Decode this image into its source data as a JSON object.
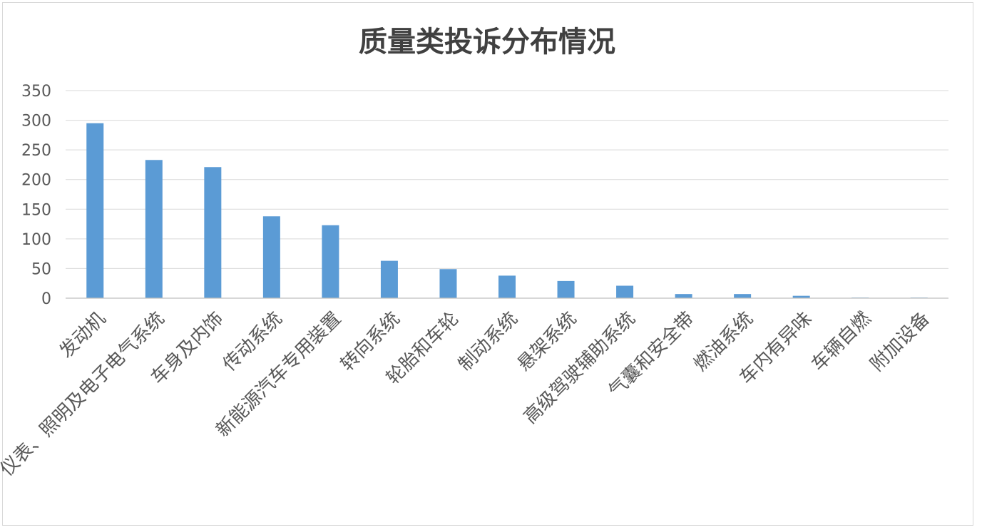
{
  "chart_data": {
    "type": "bar",
    "title": "质量类投诉分布情况",
    "xlabel": "",
    "ylabel": "",
    "ylim": [
      0,
      350
    ],
    "yticks": [
      0,
      50,
      100,
      150,
      200,
      250,
      300,
      350
    ],
    "grid": true,
    "legend": "none",
    "bar_color": "#5b9bd5",
    "categories": [
      "发动机",
      "仪表、照明及电子电气系统",
      "车身及内饰",
      "传动系统",
      "新能源汽车专用装置",
      "转向系统",
      "轮胎和车轮",
      "制动系统",
      "悬架系统",
      "高级驾驶辅助系统",
      "气囊和安全带",
      "燃油系统",
      "车内有异味",
      "车辆自燃",
      "附加设备"
    ],
    "values": [
      295,
      233,
      221,
      138,
      123,
      63,
      49,
      38,
      29,
      21,
      7,
      7,
      4,
      1,
      1
    ]
  }
}
